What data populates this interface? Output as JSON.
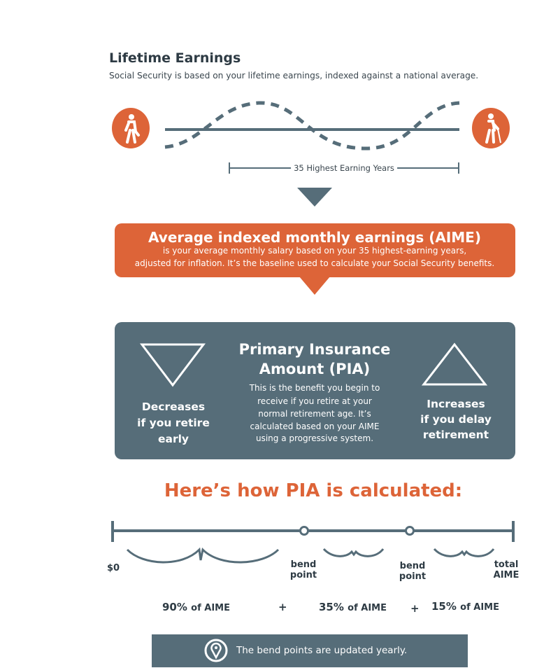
{
  "colors": {
    "accent": "#dd6438",
    "slate": "#566d79",
    "text": "#2e3b44"
  },
  "lifetime": {
    "title": "Lifetime Earnings",
    "subtitle": "Social Security is based on your lifetime earnings, indexed against a national average.",
    "range_label": "35 Highest Earning Years",
    "icons": [
      "walking-person-icon",
      "elderly-person-with-cane-icon"
    ]
  },
  "aime": {
    "title": "Average indexed monthly earnings (AIME)",
    "lines": [
      "is your average monthly salary based on your 35 highest-earning years,",
      "adjusted for inflation. It’s the baseline used to calculate your Social Security benefits."
    ]
  },
  "pia": {
    "title_lines": [
      "Primary Insurance",
      "Amount (PIA)"
    ],
    "body_lines": [
      "This is the benefit you begin to",
      "receive if you retire at your",
      "normal retirement age. It’s",
      "calculated based on your AIME",
      "using a progressive system."
    ],
    "left_lines": [
      "Decreases",
      "if you retire",
      "early"
    ],
    "right_lines": [
      "Increases",
      "if you delay",
      "retirement"
    ]
  },
  "calc": {
    "heading": "Here’s how PIA is calculated:",
    "labels": {
      "start": "$0",
      "bend1": [
        "bend",
        "point"
      ],
      "bend2": [
        "bend",
        "point"
      ],
      "end": [
        "total",
        "AIME"
      ]
    },
    "tiers": [
      {
        "pct": "90%",
        "of": "of AIME"
      },
      {
        "pct": "35%",
        "of": "of AIME"
      },
      {
        "pct": "15%",
        "of": "of AIME"
      }
    ],
    "plus": "+",
    "note": "The bend points are updated yearly.",
    "note_icon": "location-pin-icon"
  }
}
